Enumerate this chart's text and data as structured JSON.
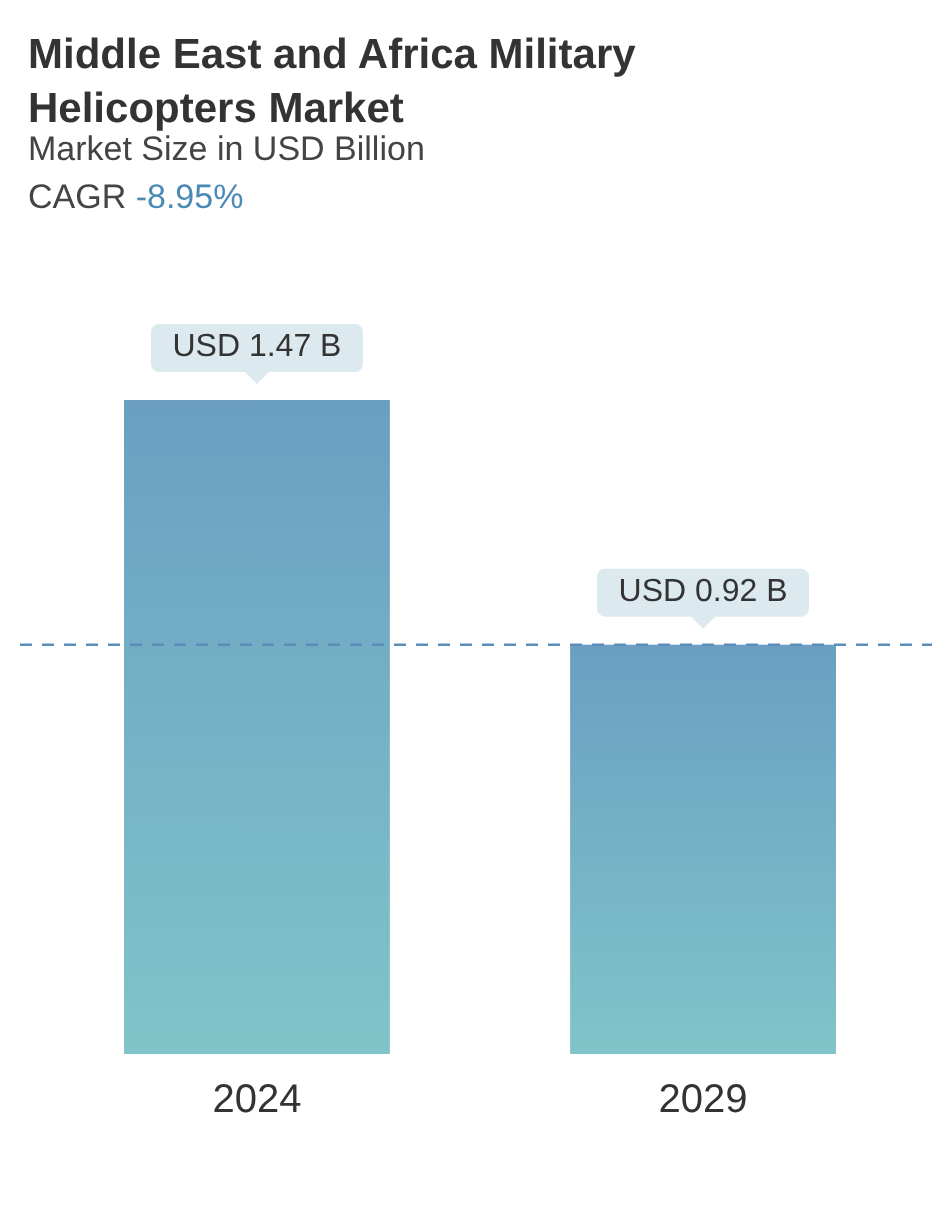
{
  "chart_data": {
    "type": "bar",
    "title": "Middle East and Africa Military Helicopters Market",
    "subtitle": "Market Size in USD Billion",
    "annotations": [
      "CAGR -8.95%"
    ],
    "categories": [
      "2024",
      "2029"
    ],
    "values": [
      1.47,
      0.92
    ],
    "value_labels": [
      "USD 1.47 B",
      "USD 0.92 B"
    ],
    "color": "#6a9fc2",
    "ref_lines": [
      {
        "axis": "y",
        "value": 0.92,
        "color": "#5b8db8",
        "line_style": "dashed"
      }
    ]
  }
}
